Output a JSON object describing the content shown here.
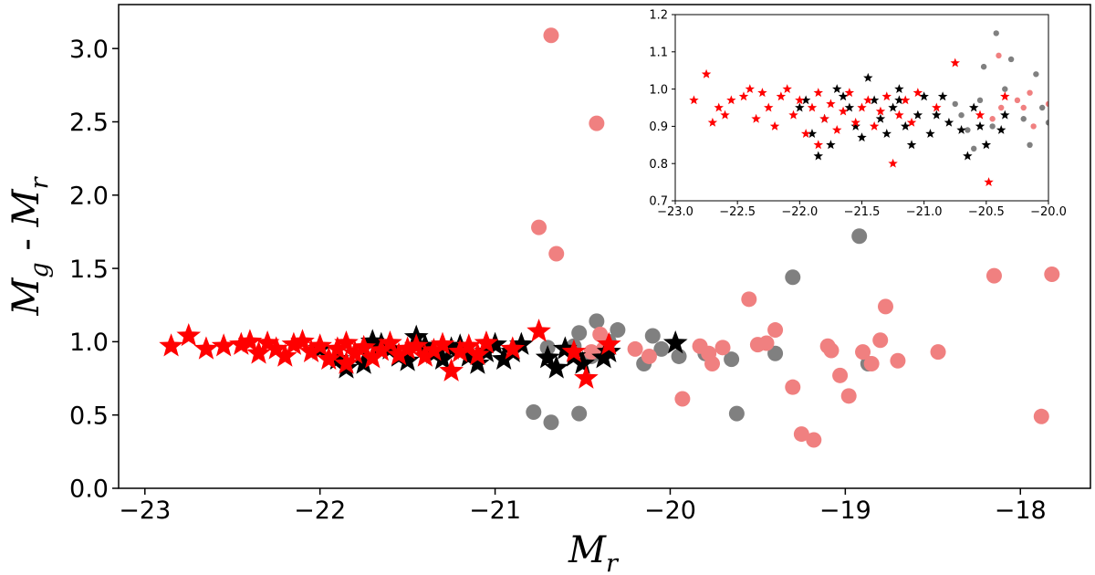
{
  "chart_data": [
    {
      "id": "main",
      "type": "scatter",
      "title": "",
      "xlabel": {
        "base": "M",
        "sub": "r"
      },
      "ylabel": {
        "part1_base": "M",
        "part1_sub": "g",
        "sep": " - ",
        "part2_base": "M",
        "part2_sub": "r"
      },
      "xlim": [
        -23.15,
        -17.6
      ],
      "ylim": [
        0.0,
        3.3
      ],
      "xticks": [
        -23,
        -22,
        -21,
        -20,
        -19,
        -18
      ],
      "xtick_labels": [
        "−23",
        "−22",
        "−21",
        "−20",
        "−19",
        "−18"
      ],
      "yticks": [
        0.0,
        0.5,
        1.0,
        1.5,
        2.0,
        2.5,
        3.0
      ],
      "ytick_labels": [
        "0.0",
        "0.5",
        "1.0",
        "1.5",
        "2.0",
        "2.5",
        "3.0"
      ],
      "grid": false,
      "series": [
        {
          "name": "grey-circles",
          "marker": "circle",
          "color": "#808080",
          "points": [
            [
              -20.78,
              0.52
            ],
            [
              -20.68,
              0.45
            ],
            [
              -20.52,
              0.51
            ],
            [
              -20.42,
              1.14
            ],
            [
              -20.52,
              1.06
            ],
            [
              -20.3,
              1.08
            ],
            [
              -20.55,
              0.97
            ],
            [
              -20.45,
              0.9
            ],
            [
              -20.35,
              1.0
            ],
            [
              -20.15,
              0.85
            ],
            [
              -20.1,
              1.04
            ],
            [
              -20.05,
              0.95
            ],
            [
              -19.95,
              0.9
            ],
            [
              -19.8,
              0.92
            ],
            [
              -19.65,
              0.88
            ],
            [
              -19.62,
              0.51
            ],
            [
              -19.3,
              1.44
            ],
            [
              -18.92,
              1.72
            ],
            [
              -18.87,
              0.85
            ],
            [
              -19.4,
              0.92
            ],
            [
              -20.7,
              0.96
            ]
          ]
        },
        {
          "name": "pink-circles",
          "marker": "circle",
          "color": "#f08080",
          "points": [
            [
              -20.68,
              3.09
            ],
            [
              -20.42,
              2.49
            ],
            [
              -20.75,
              1.78
            ],
            [
              -20.65,
              1.6
            ],
            [
              -20.4,
              1.05
            ],
            [
              -20.38,
              0.95
            ],
            [
              -20.45,
              0.93
            ],
            [
              -20.2,
              0.95
            ],
            [
              -20.12,
              0.9
            ],
            [
              -19.93,
              0.61
            ],
            [
              -19.83,
              0.97
            ],
            [
              -19.78,
              0.92
            ],
            [
              -19.76,
              0.85
            ],
            [
              -19.7,
              0.96
            ],
            [
              -19.55,
              1.29
            ],
            [
              -19.5,
              0.98
            ],
            [
              -19.45,
              0.99
            ],
            [
              -19.4,
              1.08
            ],
            [
              -19.3,
              0.69
            ],
            [
              -19.25,
              0.37
            ],
            [
              -19.18,
              0.33
            ],
            [
              -19.1,
              0.97
            ],
            [
              -19.08,
              0.94
            ],
            [
              -19.03,
              0.77
            ],
            [
              -18.98,
              0.63
            ],
            [
              -18.9,
              0.93
            ],
            [
              -18.85,
              0.85
            ],
            [
              -18.8,
              1.01
            ],
            [
              -18.77,
              1.24
            ],
            [
              -18.7,
              0.87
            ],
            [
              -18.47,
              0.93
            ],
            [
              -18.15,
              1.45
            ],
            [
              -17.88,
              0.49
            ],
            [
              -17.82,
              1.46
            ]
          ]
        },
        {
          "name": "black-stars",
          "marker": "star",
          "color": "#000000",
          "points": [
            [
              -22.0,
              0.95
            ],
            [
              -21.9,
              0.88
            ],
            [
              -21.8,
              0.92
            ],
            [
              -21.75,
              0.85
            ],
            [
              -21.7,
              1.0
            ],
            [
              -21.6,
              0.95
            ],
            [
              -21.55,
              0.9
            ],
            [
              -21.5,
              0.87
            ],
            [
              -21.45,
              1.03
            ],
            [
              -21.4,
              0.97
            ],
            [
              -21.35,
              0.92
            ],
            [
              -21.3,
              0.88
            ],
            [
              -21.25,
              0.95
            ],
            [
              -21.2,
              0.97
            ],
            [
              -21.15,
              0.9
            ],
            [
              -21.1,
              0.85
            ],
            [
              -21.05,
              0.93
            ],
            [
              -21.0,
              0.98
            ],
            [
              -20.95,
              0.88
            ],
            [
              -20.9,
              0.93
            ],
            [
              -20.85,
              0.98
            ],
            [
              -20.7,
              0.89
            ],
            [
              -20.65,
              0.82
            ],
            [
              -20.6,
              0.95
            ],
            [
              -20.55,
              0.9
            ],
            [
              -20.5,
              0.85
            ],
            [
              -20.38,
              0.89
            ],
            [
              -20.35,
              0.93
            ],
            [
              -19.97,
              0.99
            ],
            [
              -21.85,
              0.82
            ],
            [
              -21.65,
              0.98
            ]
          ]
        },
        {
          "name": "red-stars",
          "marker": "star",
          "color": "#ff0000",
          "points": [
            [
              -22.85,
              0.97
            ],
            [
              -22.75,
              1.04
            ],
            [
              -22.65,
              0.95
            ],
            [
              -22.55,
              0.97
            ],
            [
              -22.4,
              1.0
            ],
            [
              -22.35,
              0.92
            ],
            [
              -22.3,
              0.99
            ],
            [
              -22.25,
              0.95
            ],
            [
              -22.2,
              0.9
            ],
            [
              -22.15,
              0.98
            ],
            [
              -22.1,
              1.0
            ],
            [
              -22.05,
              0.93
            ],
            [
              -22.0,
              0.97
            ],
            [
              -21.95,
              0.88
            ],
            [
              -21.9,
              0.95
            ],
            [
              -21.85,
              0.99
            ],
            [
              -21.8,
              0.92
            ],
            [
              -21.75,
              0.96
            ],
            [
              -21.7,
              0.89
            ],
            [
              -21.65,
              0.94
            ],
            [
              -21.6,
              0.99
            ],
            [
              -21.55,
              0.91
            ],
            [
              -21.5,
              0.95
            ],
            [
              -21.45,
              0.97
            ],
            [
              -21.4,
              0.9
            ],
            [
              -21.35,
              0.94
            ],
            [
              -21.3,
              0.98
            ],
            [
              -21.25,
              0.8
            ],
            [
              -21.2,
              0.93
            ],
            [
              -21.15,
              0.97
            ],
            [
              -21.1,
              0.91
            ],
            [
              -20.9,
              0.95
            ],
            [
              -20.75,
              1.07
            ],
            [
              -20.55,
              0.93
            ],
            [
              -20.48,
              0.75
            ],
            [
              -20.35,
              0.98
            ],
            [
              -22.45,
              0.98
            ],
            [
              -21.05,
              0.99
            ],
            [
              -21.85,
              0.85
            ]
          ]
        }
      ]
    },
    {
      "id": "inset",
      "type": "scatter",
      "title": "",
      "xlabel": "",
      "ylabel": "",
      "xlim": [
        -23.0,
        -20.0
      ],
      "ylim": [
        0.7,
        1.2
      ],
      "xticks": [
        -23.0,
        -22.5,
        -22.0,
        -21.5,
        -21.0,
        -20.5,
        -20.0
      ],
      "xtick_labels": [
        "−23.0",
        "−22.5",
        "−22.0",
        "−21.5",
        "−21.0",
        "−20.5",
        "−20.0"
      ],
      "yticks": [
        0.7,
        0.8,
        0.9,
        1.0,
        1.1,
        1.2
      ],
      "ytick_labels": [
        "0.7",
        "0.8",
        "0.9",
        "1.0",
        "1.1",
        "1.2"
      ],
      "grid": false,
      "series": [
        {
          "name": "grey-circles",
          "marker": "circle",
          "color": "#808080",
          "points": [
            [
              -20.42,
              1.15
            ],
            [
              -20.52,
              1.06
            ],
            [
              -20.3,
              1.08
            ],
            [
              -20.55,
              0.97
            ],
            [
              -20.45,
              0.9
            ],
            [
              -20.35,
              1.0
            ],
            [
              -20.15,
              0.85
            ],
            [
              -20.1,
              1.04
            ],
            [
              -20.05,
              0.95
            ],
            [
              -20.7,
              0.93
            ],
            [
              -20.65,
              0.89
            ],
            [
              -20.75,
              0.96
            ],
            [
              -20.6,
              0.84
            ],
            [
              -20.2,
              0.92
            ],
            [
              -20.0,
              0.91
            ]
          ]
        },
        {
          "name": "pink-circles",
          "marker": "circle",
          "color": "#f08080",
          "points": [
            [
              -20.4,
              1.09
            ],
            [
              -20.38,
              0.95
            ],
            [
              -20.45,
              0.92
            ],
            [
              -20.2,
              0.95
            ],
            [
              -20.12,
              0.9
            ],
            [
              -20.15,
              0.99
            ],
            [
              -20.0,
              0.96
            ],
            [
              -20.25,
              0.97
            ]
          ]
        },
        {
          "name": "black-stars",
          "marker": "star",
          "color": "#000000",
          "points": [
            [
              -22.0,
              0.95
            ],
            [
              -21.9,
              0.88
            ],
            [
              -21.8,
              0.92
            ],
            [
              -21.75,
              0.85
            ],
            [
              -21.7,
              1.0
            ],
            [
              -21.6,
              0.95
            ],
            [
              -21.55,
              0.9
            ],
            [
              -21.5,
              0.87
            ],
            [
              -21.45,
              1.03
            ],
            [
              -21.4,
              0.97
            ],
            [
              -21.35,
              0.92
            ],
            [
              -21.3,
              0.88
            ],
            [
              -21.25,
              0.95
            ],
            [
              -21.2,
              0.97
            ],
            [
              -21.15,
              0.9
            ],
            [
              -21.1,
              0.85
            ],
            [
              -21.05,
              0.93
            ],
            [
              -21.0,
              0.98
            ],
            [
              -20.95,
              0.88
            ],
            [
              -20.9,
              0.93
            ],
            [
              -20.85,
              0.98
            ],
            [
              -20.7,
              0.89
            ],
            [
              -20.65,
              0.82
            ],
            [
              -20.6,
              0.95
            ],
            [
              -20.55,
              0.9
            ],
            [
              -20.5,
              0.85
            ],
            [
              -20.38,
              0.89
            ],
            [
              -20.35,
              0.93
            ],
            [
              -21.85,
              0.82
            ],
            [
              -21.65,
              0.98
            ],
            [
              -21.95,
              0.97
            ],
            [
              -21.2,
              1.0
            ],
            [
              -20.8,
              0.91
            ]
          ]
        },
        {
          "name": "red-stars",
          "marker": "star",
          "color": "#ff0000",
          "points": [
            [
              -22.85,
              0.97
            ],
            [
              -22.75,
              1.04
            ],
            [
              -22.65,
              0.95
            ],
            [
              -22.55,
              0.97
            ],
            [
              -22.4,
              1.0
            ],
            [
              -22.35,
              0.92
            ],
            [
              -22.3,
              0.99
            ],
            [
              -22.25,
              0.95
            ],
            [
              -22.2,
              0.9
            ],
            [
              -22.15,
              0.98
            ],
            [
              -22.1,
              1.0
            ],
            [
              -22.05,
              0.93
            ],
            [
              -22.0,
              0.97
            ],
            [
              -21.95,
              0.88
            ],
            [
              -21.9,
              0.95
            ],
            [
              -21.85,
              0.99
            ],
            [
              -21.8,
              0.92
            ],
            [
              -21.75,
              0.96
            ],
            [
              -21.7,
              0.89
            ],
            [
              -21.65,
              0.94
            ],
            [
              -21.6,
              0.99
            ],
            [
              -21.55,
              0.91
            ],
            [
              -21.5,
              0.95
            ],
            [
              -21.45,
              0.97
            ],
            [
              -21.4,
              0.9
            ],
            [
              -21.35,
              0.94
            ],
            [
              -21.3,
              0.98
            ],
            [
              -21.25,
              0.8
            ],
            [
              -21.2,
              0.93
            ],
            [
              -21.15,
              0.97
            ],
            [
              -21.1,
              0.91
            ],
            [
              -20.9,
              0.95
            ],
            [
              -20.75,
              1.07
            ],
            [
              -20.55,
              0.93
            ],
            [
              -20.48,
              0.75
            ],
            [
              -20.35,
              0.98
            ],
            [
              -22.45,
              0.98
            ],
            [
              -21.05,
              0.99
            ],
            [
              -21.85,
              0.85
            ],
            [
              -22.7,
              0.91
            ],
            [
              -22.6,
              0.93
            ]
          ]
        }
      ]
    }
  ]
}
